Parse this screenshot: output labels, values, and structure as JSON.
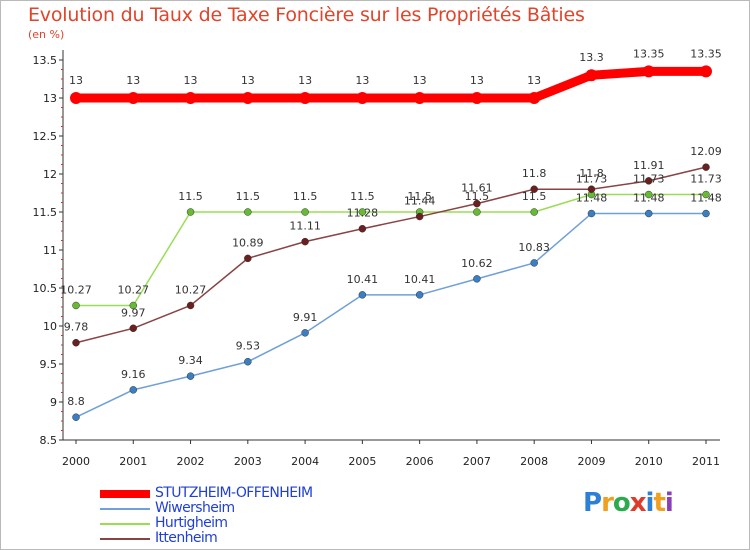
{
  "chart_data": {
    "type": "line",
    "title": "Evolution du Taux de Taxe Foncière sur les Propriétés Bâties",
    "subtitle": "(en %)",
    "xlabel": "",
    "ylabel": "",
    "x": [
      "2000",
      "2001",
      "2002",
      "2003",
      "2004",
      "2005",
      "2006",
      "2007",
      "2008",
      "2009",
      "2010",
      "2011"
    ],
    "ylim": [
      8.5,
      13.5
    ],
    "y_ticks": [
      {
        "value": 8.5,
        "label": "8.5"
      },
      {
        "value": 9,
        "label": "9"
      },
      {
        "value": 9.5,
        "label": "9.5"
      },
      {
        "value": 10,
        "label": "10"
      },
      {
        "value": 10.5,
        "label": "10.5"
      },
      {
        "value": 11,
        "label": "11"
      },
      {
        "value": 11.5,
        "label": "11.5"
      },
      {
        "value": 12,
        "label": "12"
      },
      {
        "value": 12.5,
        "label": "12.5"
      },
      {
        "value": 13,
        "label": "13"
      },
      {
        "value": 13.5,
        "label": "13.5"
      }
    ],
    "grid": false,
    "legend_position": "bottom-left",
    "series": [
      {
        "name": "STUTZHEIM-OFFENHEIM",
        "color": "#ff0000",
        "values": [
          13,
          13,
          13,
          13,
          13,
          13,
          13,
          13,
          13,
          13.3,
          13.35,
          13.35
        ],
        "labels": [
          "13",
          "13",
          "13",
          "13",
          "13",
          "13",
          "13",
          "13",
          "13",
          "13.3",
          "13.35",
          "13.35"
        ]
      },
      {
        "name": "Wiwersheim",
        "color": "#6fa0d8",
        "marker_color": "#3a7fc4",
        "values": [
          8.8,
          9.16,
          9.34,
          9.53,
          9.91,
          10.41,
          10.41,
          10.62,
          10.83,
          11.48,
          11.48,
          11.48
        ],
        "labels": [
          "8.8",
          "9.16",
          "9.34",
          "9.53",
          "9.91",
          "10.41",
          "10.41",
          "10.62",
          "10.83",
          "11.48",
          "11.48",
          "11.48"
        ]
      },
      {
        "name": "Hurtigheim",
        "color": "#99dd55",
        "marker_color": "#66bb33",
        "values": [
          10.27,
          10.27,
          11.5,
          11.5,
          11.5,
          11.5,
          11.5,
          11.5,
          11.5,
          11.73,
          11.73,
          11.73
        ],
        "labels": [
          "10.27",
          "10.27",
          "11.5",
          "11.5",
          "11.5",
          "11.5",
          "11.5",
          "11.5",
          "11.5",
          "11.73",
          "11.73",
          "11.73"
        ]
      },
      {
        "name": "Ittenheim",
        "color": "#884444",
        "marker_color": "#6b1f1f",
        "values": [
          9.78,
          9.97,
          10.27,
          10.89,
          11.11,
          11.28,
          11.44,
          11.61,
          11.8,
          11.8,
          11.91,
          12.09
        ],
        "labels": [
          "9.78",
          "9.97",
          "10.27",
          "10.89",
          "11.11",
          "11.28",
          "11.44",
          "11.61",
          "11.8",
          "11.8",
          "11.91",
          "12.09"
        ]
      }
    ]
  },
  "logo": {
    "letters": [
      "P",
      "r",
      "o",
      "x",
      "i",
      "t",
      "i"
    ],
    "colors": [
      "#2e7fd6",
      "#f0a020",
      "#2eaa4e",
      "#e03a2a",
      "#2e7fd6",
      "#f0a020",
      "#8a3fb8"
    ]
  }
}
